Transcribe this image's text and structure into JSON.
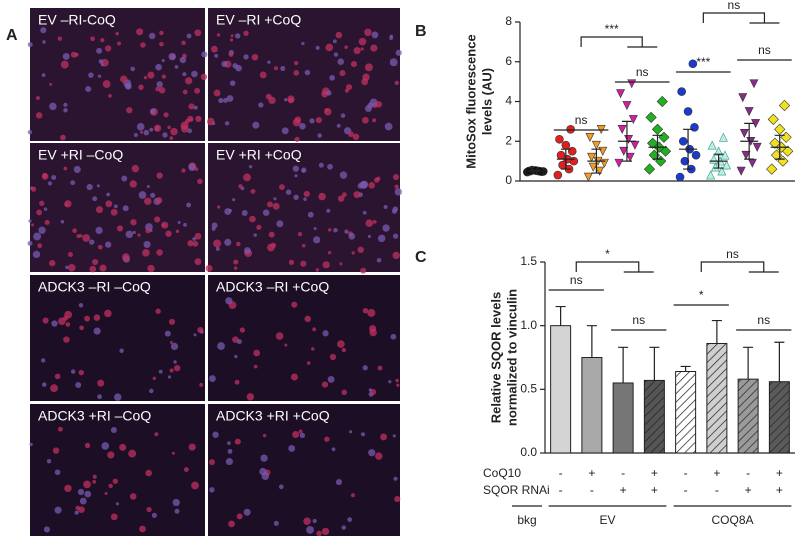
{
  "panels": [
    "A",
    "B",
    "C"
  ],
  "images": [
    "EV –RI-CoQ",
    "EV –RI +CoQ",
    "EV +RI –CoQ",
    "EV +RI +CoQ",
    "ADCK3 –RI –CoQ",
    "ADCK3 –RI +CoQ",
    "ADCK3 +RI –CoQ",
    "ADCK3 +RI +CoQ"
  ],
  "chart_data": [
    {
      "type": "scatter",
      "ylabel": [
        "MitoSox fluorescence",
        "levels (AU)"
      ],
      "ylim": [
        0,
        8
      ],
      "yticks": [
        0,
        2,
        4,
        6,
        8
      ],
      "groups": [
        {
          "color": "#111111",
          "marker": "circle",
          "points": [
            0.45,
            0.5,
            0.55,
            0.48,
            0.52,
            0.5,
            0.47,
            0.53,
            0.5,
            0.49
          ],
          "mean": 0.5,
          "error": 0.05
        },
        {
          "color": "#e02020",
          "marker": "circle",
          "points": [
            0.3,
            0.6,
            0.8,
            1.0,
            1.1,
            1.3,
            1.5,
            1.8,
            2.1,
            2.6
          ],
          "mean": 1.1,
          "error": 0.5
        },
        {
          "color": "#f39c20",
          "marker": "triangle-down",
          "points": [
            0.2,
            0.5,
            0.7,
            0.9,
            1.0,
            1.2,
            1.5,
            1.8,
            2.2,
            2.6
          ],
          "mean": 1.0,
          "error": 0.6
        },
        {
          "color": "#d020a0",
          "marker": "triangle-down",
          "points": [
            0.9,
            1.2,
            1.5,
            1.8,
            2.1,
            2.6,
            3.1,
            3.8,
            4.4,
            4.9
          ],
          "mean": 2.0,
          "error": 1.0
        },
        {
          "color": "#20b020",
          "marker": "diamond",
          "points": [
            0.6,
            1.0,
            1.3,
            1.5,
            1.7,
            1.9,
            2.2,
            2.6,
            3.2,
            4.0
          ],
          "mean": 1.7,
          "error": 0.6
        },
        {
          "color": "#1a3ad0",
          "marker": "circle",
          "points": [
            0.2,
            0.6,
            1.0,
            1.3,
            1.6,
            2.0,
            2.7,
            3.5,
            4.5,
            5.9
          ],
          "mean": 1.6,
          "error": 1.0
        },
        {
          "color": "#bfeee0",
          "marker": "triangle-up",
          "points": [
            0.3,
            0.5,
            0.7,
            0.8,
            1.0,
            1.1,
            1.3,
            1.5,
            1.8,
            2.2
          ],
          "mean": 1.0,
          "error": 0.35
        },
        {
          "color": "#8a2a8a",
          "marker": "triangle-down",
          "points": [
            0.5,
            0.9,
            1.3,
            1.7,
            2.0,
            2.4,
            2.9,
            3.5,
            4.2,
            4.9
          ],
          "mean": 2.0,
          "error": 0.9
        },
        {
          "color": "#f0e020",
          "marker": "diamond",
          "points": [
            0.6,
            1.0,
            1.3,
            1.5,
            1.7,
            1.9,
            2.2,
            2.6,
            3.1,
            3.8
          ],
          "mean": 1.7,
          "error": 0.6
        }
      ],
      "annotations": [
        "ns",
        "***",
        "ns",
        "***",
        "ns",
        "ns"
      ]
    },
    {
      "type": "bar",
      "ylabel": [
        "Relative SQOR levels",
        "normalized to vinculin"
      ],
      "ylim": [
        0,
        1.5
      ],
      "yticks": [
        {
          "value": 0,
          "label": "0.0"
        },
        0.5,
        {
          "value": 1,
          "label": "1.0"
        },
        1.5
      ],
      "values": [
        1.0,
        0.75,
        0.55,
        0.57,
        0.64,
        0.86,
        0.58,
        0.56
      ],
      "errors": [
        0.15,
        0.25,
        0.28,
        0.26,
        0.04,
        0.18,
        0.25,
        0.31
      ],
      "colors": [
        "#d4d4d4",
        "#a8a8a8",
        "#767676",
        "#555555",
        "#ffffff",
        "#cfcfcf",
        "#9a9a9a",
        "#5a5a5a"
      ],
      "hatched": [
        false,
        false,
        false,
        true,
        true,
        true,
        true,
        true
      ],
      "row_labels": [
        "CoQ10",
        "SQOR RNAi"
      ],
      "rows": [
        [
          "-",
          "+",
          "-",
          "+",
          "-",
          "+",
          "-",
          "+"
        ],
        [
          "-",
          "-",
          "+",
          "+",
          "-",
          "-",
          "+",
          "+"
        ]
      ],
      "groups": [
        "bkg",
        "EV",
        "COQ8A"
      ],
      "annotations": [
        "ns",
        "*",
        "ns",
        "ns",
        "*",
        "ns"
      ]
    }
  ]
}
